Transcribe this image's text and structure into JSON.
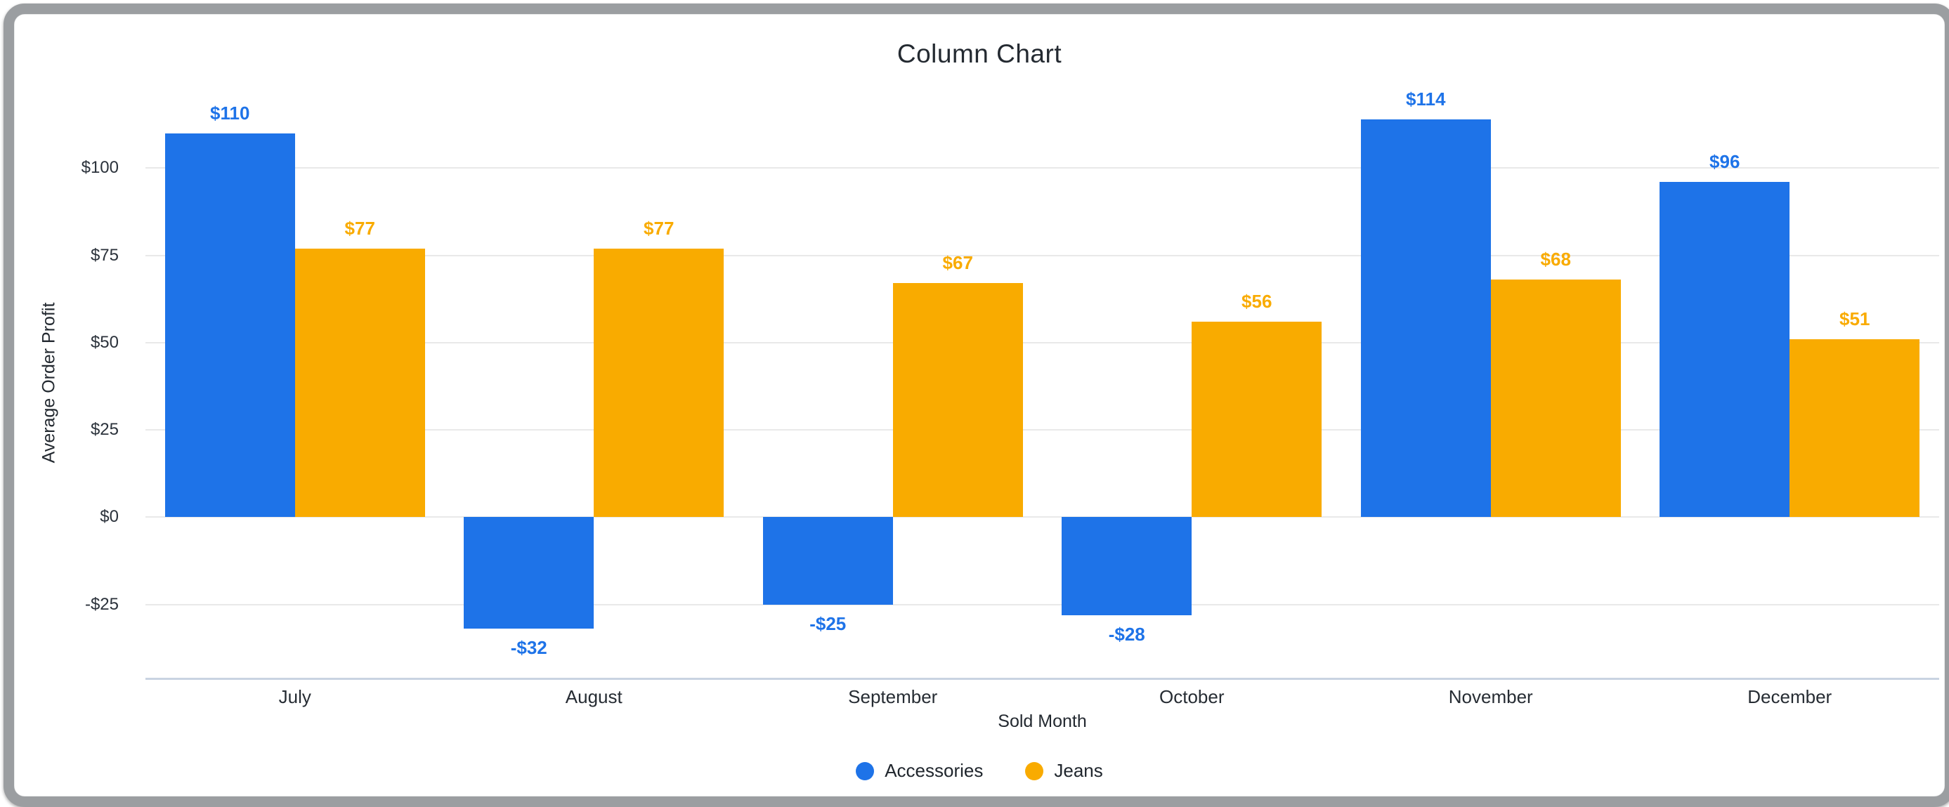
{
  "window": {
    "frame_border_color": "#9b9ea1",
    "background": "#ffffff"
  },
  "chart_data": {
    "type": "bar",
    "title": "Column Chart",
    "xlabel": "Sold Month",
    "ylabel": "Average Order Profit",
    "categories": [
      "July",
      "August",
      "September",
      "October",
      "November",
      "December"
    ],
    "series": [
      {
        "name": "Accessories",
        "color": "#1e73e8",
        "values": [
          110,
          -32,
          -25,
          -28,
          114,
          96
        ],
        "labels": [
          "$110",
          "-$32",
          "-$25",
          "-$28",
          "$114",
          "$96"
        ]
      },
      {
        "name": "Jeans",
        "color": "#f9ab00",
        "values": [
          77,
          77,
          67,
          56,
          68,
          51
        ],
        "labels": [
          "$77",
          "$77",
          "$67",
          "$56",
          "$68",
          "$51"
        ]
      }
    ],
    "y_ticks": [
      100,
      75,
      50,
      25,
      0,
      -25
    ],
    "y_tick_labels": [
      "$100",
      "$75",
      "$50",
      "$25",
      "$0",
      "-$25"
    ],
    "ylim": [
      -46,
      123
    ],
    "grid": true,
    "legend_position": "bottom-center",
    "style": {
      "gridline_color": "#e9e9e9",
      "axis_line_color": "#c9d3e2",
      "title_color": "#242a31",
      "tick_color": "#2b323b"
    }
  }
}
